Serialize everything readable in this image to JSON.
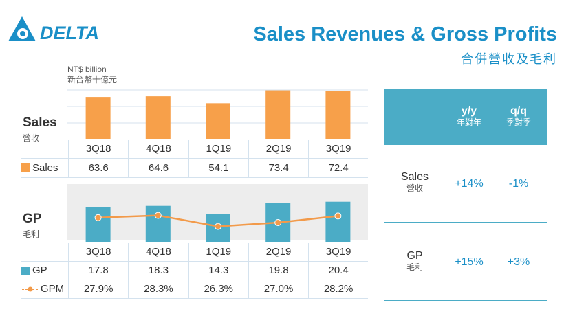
{
  "header": {
    "brand": "DELTA",
    "title": "Sales Revenues & Gross Profits",
    "subtitle": "合併營收及毛利"
  },
  "unit": {
    "en": "NT$ billion",
    "zh": "新台幣十億元"
  },
  "sales_section": {
    "title": "Sales",
    "subtitle": "營收",
    "legend": "Sales"
  },
  "gp_section": {
    "title": "GP",
    "subtitle": "毛利",
    "legend_gp": "GP",
    "legend_gpm": "GPM"
  },
  "colors": {
    "sales_bar": "#f7a04a",
    "gp_bar": "#4bacc6",
    "gpm_line": "#f29a4a",
    "accent": "#1a8fc7"
  },
  "chart_data": [
    {
      "type": "bar",
      "categories": [
        "3Q18",
        "4Q18",
        "1Q19",
        "2Q19",
        "3Q19"
      ],
      "series": [
        {
          "name": "Sales",
          "values": [
            63.6,
            64.6,
            54.1,
            73.4,
            72.4
          ]
        }
      ],
      "display": [
        "63.6",
        "64.6",
        "54.1",
        "73.4",
        "72.4"
      ],
      "ylim": [
        0,
        75
      ]
    },
    {
      "type": "bar",
      "categories": [
        "3Q18",
        "4Q18",
        "1Q19",
        "2Q19",
        "3Q19"
      ],
      "series": [
        {
          "name": "GP",
          "values": [
            17.8,
            18.3,
            14.3,
            19.8,
            20.4
          ]
        },
        {
          "name": "GPM",
          "type": "line",
          "values": [
            27.9,
            28.3,
            26.3,
            27.0,
            28.2
          ]
        }
      ],
      "display_gp": [
        "17.8",
        "18.3",
        "14.3",
        "19.8",
        "20.4"
      ],
      "display_gpm": [
        "27.9%",
        "28.3%",
        "26.3%",
        "27.0%",
        "28.2%"
      ],
      "ylim": [
        0,
        21
      ]
    }
  ],
  "growth_table": {
    "yy_label": "y/y",
    "yy_sub": "年對年",
    "qq_label": "q/q",
    "qq_sub": "季對季",
    "rows": [
      {
        "label": "Sales",
        "sub": "營收",
        "yy": "+14%",
        "qq": "-1%"
      },
      {
        "label": "GP",
        "sub": "毛利",
        "yy": "+15%",
        "qq": "+3%"
      }
    ]
  }
}
